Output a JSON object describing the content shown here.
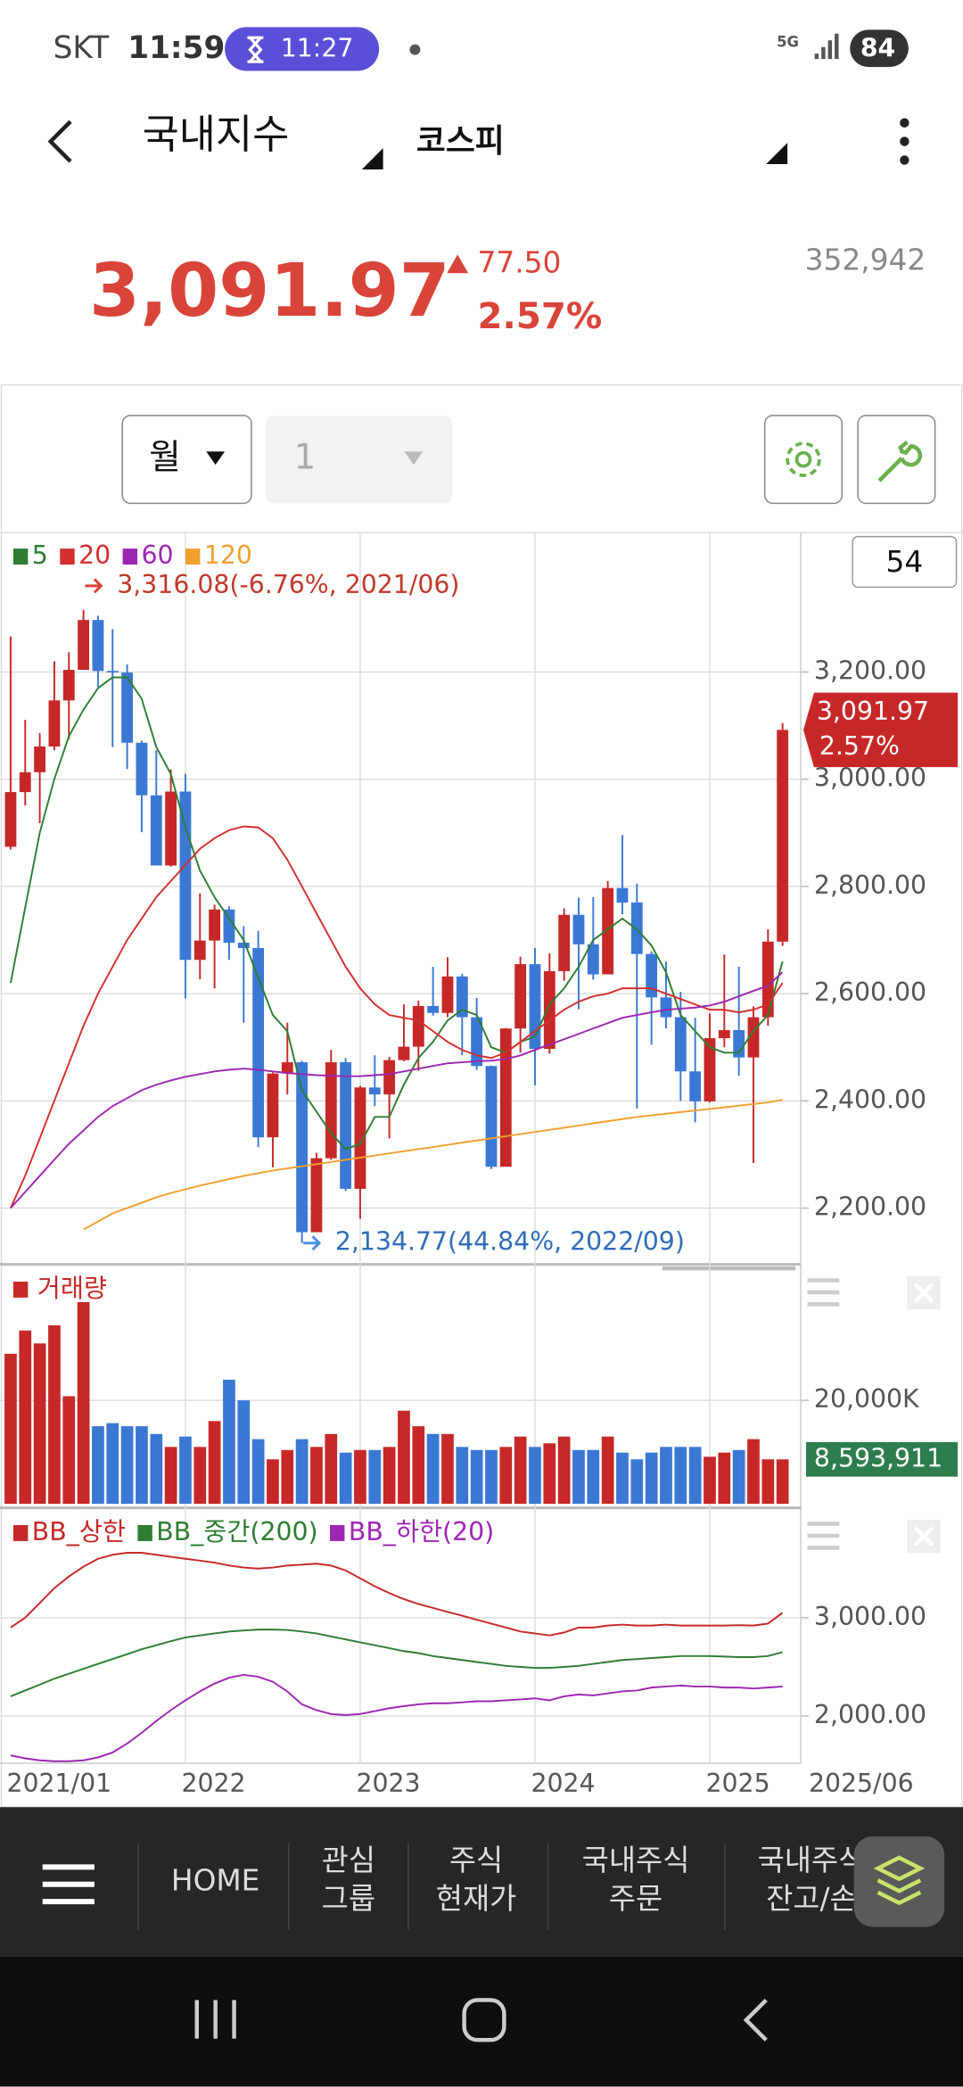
{
  "status_bar": {
    "carrier": "SKT",
    "time": "11:59",
    "timer": "11:27",
    "network": "5G",
    "battery": "84"
  },
  "header": {
    "title": "국내지수",
    "index": "코스피"
  },
  "quote": {
    "price": "3,091.97",
    "change": "77.50",
    "change_rate": "2.57%",
    "volume": "352,942"
  },
  "toolbar": {
    "period": "월",
    "interval": "1",
    "count": "54"
  },
  "chart_data": [
    {
      "type": "candlestick",
      "open": [
        2874,
        2976,
        3013,
        3061,
        3147,
        3204,
        3297,
        3202,
        3199,
        3068,
        2970,
        2839,
        2977,
        2663,
        2699,
        2757,
        2695,
        2685,
        2332,
        2451,
        2472,
        2155,
        2293,
        2472,
        2236,
        2425,
        2412,
        2476,
        2501,
        2577,
        2564,
        2632,
        2556,
        2465,
        2277,
        2535,
        2655,
        2497,
        2642,
        2747,
        2692,
        2636,
        2797,
        2770,
        2674,
        2593,
        2556,
        2455,
        2399,
        2517,
        2532,
        2481,
        2556,
        2697
      ],
      "high": [
        3266,
        3111,
        3086,
        3220,
        3237,
        3316.08,
        3305,
        3280,
        3214,
        3072,
        3054,
        3018,
        3010,
        2787,
        2766,
        2763,
        2726,
        2717,
        2453,
        2546,
        2475,
        2303,
        2495,
        2480,
        2428,
        2485,
        2482,
        2580,
        2587,
        2650,
        2668,
        2637,
        2592,
        2466,
        2536,
        2669,
        2685,
        2675,
        2759,
        2779,
        2780,
        2810,
        2896,
        2805,
        2679,
        2660,
        2603,
        2555,
        2563,
        2673,
        2650,
        2576,
        2720,
        3105
      ],
      "low": [
        2869,
        2951,
        2918,
        3054,
        3075,
        3204,
        3172,
        3060,
        3019,
        2901,
        2839,
        2837,
        2591,
        2627,
        2610,
        2663,
        2546,
        2314,
        2276,
        2412,
        2134.77,
        2155,
        2290,
        2232,
        2180,
        2390,
        2330,
        2474,
        2456,
        2559,
        2556,
        2485,
        2458,
        2273,
        2278,
        2490,
        2429,
        2488,
        2624,
        2571,
        2626,
        2636,
        2748,
        2386,
        2505,
        2535,
        2400,
        2360,
        2397,
        2500,
        2447,
        2284,
        2540,
        2689
      ],
      "close": [
        2976,
        3013,
        3061,
        3147,
        3204,
        3297,
        3202,
        3199,
        3068,
        2970,
        2839,
        2977,
        2663,
        2699,
        2757,
        2695,
        2685,
        2332,
        2451,
        2472,
        2155,
        2293,
        2472,
        2236,
        2425,
        2412,
        2476,
        2501,
        2577,
        2564,
        2632,
        2556,
        2465,
        2277,
        2535,
        2655,
        2497,
        2642,
        2747,
        2692,
        2636,
        2797,
        2770,
        2674,
        2593,
        2556,
        2455,
        2399,
        2517,
        2532,
        2481,
        2556,
        2697,
        3091.97
      ],
      "up_color": "#c62828",
      "down_color": "#3b78d4",
      "series": [
        {
          "name": "5",
          "color": "#2e7d32",
          "values": [
            2620,
            2760,
            2900,
            3000,
            3080,
            3130,
            3170,
            3190,
            3190,
            3150,
            3060,
            3010,
            2910,
            2830,
            2780,
            2740,
            2700,
            2630,
            2560,
            2530,
            2420,
            2380,
            2340,
            2310,
            2320,
            2370,
            2370,
            2430,
            2480,
            2510,
            2550,
            2570,
            2560,
            2500,
            2490,
            2510,
            2520,
            2580,
            2610,
            2650,
            2700,
            2720,
            2740,
            2720,
            2690,
            2640,
            2560,
            2530,
            2500,
            2490,
            2490,
            2530,
            2560,
            2660
          ]
        },
        {
          "name": "20",
          "color": "#d32f2f",
          "values": [
            2200,
            2260,
            2330,
            2400,
            2470,
            2540,
            2600,
            2650,
            2700,
            2740,
            2780,
            2810,
            2840,
            2870,
            2890,
            2905,
            2912,
            2910,
            2890,
            2850,
            2800,
            2750,
            2700,
            2650,
            2610,
            2580,
            2560,
            2555,
            2550,
            2530,
            2510,
            2495,
            2485,
            2480,
            2490,
            2510,
            2530,
            2550,
            2570,
            2585,
            2595,
            2600,
            2610,
            2610,
            2610,
            2600,
            2590,
            2580,
            2570,
            2570,
            2565,
            2570,
            2580,
            2620
          ]
        },
        {
          "name": "60",
          "color": "#9c27b0",
          "values": [
            2200,
            2230,
            2260,
            2290,
            2320,
            2345,
            2370,
            2390,
            2405,
            2420,
            2430,
            2438,
            2445,
            2450,
            2455,
            2458,
            2460,
            2458,
            2455,
            2452,
            2450,
            2448,
            2447,
            2446,
            2446,
            2448,
            2450,
            2455,
            2460,
            2465,
            2470,
            2472,
            2474,
            2475,
            2478,
            2485,
            2495,
            2505,
            2515,
            2525,
            2535,
            2545,
            2555,
            2560,
            2565,
            2570,
            2572,
            2574,
            2578,
            2585,
            2595,
            2605,
            2615,
            2640
          ]
        },
        {
          "name": "120",
          "color": "#f0a030",
          "values": [
            null,
            null,
            null,
            null,
            null,
            2160,
            2175,
            2190,
            2200,
            2210,
            2220,
            2228,
            2235,
            2242,
            2248,
            2254,
            2260,
            2265,
            2270,
            2274,
            2278,
            2282,
            2286,
            2290,
            2294,
            2298,
            2302,
            2306,
            2310,
            2314,
            2318,
            2322,
            2326,
            2330,
            2334,
            2338,
            2342,
            2346,
            2350,
            2354,
            2358,
            2362,
            2366,
            2370,
            2373,
            2376,
            2379,
            2382,
            2385,
            2388,
            2391,
            2394,
            2397,
            2402
          ]
        }
      ],
      "ylim": [
        2100,
        3460
      ],
      "yticks": [
        {
          "value": 2200,
          "label": "2,200.00"
        },
        {
          "value": 2400,
          "label": "2,400.00"
        },
        {
          "value": 2600,
          "label": "2,600.00"
        },
        {
          "value": 2800,
          "label": "2,800.00"
        },
        {
          "value": 3000,
          "label": "3,000.00"
        },
        {
          "value": 3200,
          "label": "3,200.00"
        }
      ],
      "grid": true,
      "annotations": [
        "3,316.08(-6.76%, 2021/06)",
        "2,134.77(44.84%, 2022/09)"
      ],
      "price_tag": [
        "3,091.97",
        "2.57%"
      ]
    },
    {
      "type": "bar",
      "title": "거래량",
      "values": [
        29000000,
        33500000,
        31000000,
        34500000,
        20800000,
        39000000,
        15000000,
        15600000,
        15000000,
        15000000,
        13500000,
        11000000,
        13000000,
        11000000,
        16000000,
        24000000,
        20000000,
        12500000,
        8600000,
        10400000,
        12500000,
        11000000,
        13500000,
        9900000,
        10400000,
        10400000,
        11000000,
        18000000,
        15000000,
        13500000,
        13500000,
        11000000,
        10400000,
        10400000,
        11000000,
        13000000,
        11000000,
        11700000,
        13000000,
        10400000,
        10400000,
        13000000,
        9900000,
        8600000,
        9900000,
        11000000,
        11000000,
        11000000,
        9100000,
        9900000,
        10400000,
        12500000,
        8600000,
        8593911
      ],
      "value_labels": [
        null,
        null,
        null,
        null,
        null,
        null,
        null,
        null,
        null,
        null,
        null,
        null,
        null,
        null,
        null,
        null,
        null,
        null,
        null,
        null,
        null,
        null,
        null,
        null,
        null,
        null,
        null,
        null,
        null,
        null,
        null,
        null,
        null,
        null,
        null,
        null,
        null,
        null,
        null,
        null,
        null,
        null,
        null,
        null,
        null,
        null,
        null,
        null,
        null,
        null,
        null,
        null,
        null,
        "8,593,911"
      ],
      "color": "#c62828",
      "up_color": "#c62828",
      "down_color": "#3b78d4",
      "tag_color": "#2e7d4f",
      "ylim": [
        0,
        45000000
      ],
      "yticks": [
        {
          "value": 20000000,
          "label": "20,000K"
        }
      ],
      "grid": true
    },
    {
      "type": "line",
      "categories": [
        "2021/01",
        null,
        null,
        null,
        null,
        null,
        null,
        null,
        null,
        null,
        null,
        null,
        "2022",
        null,
        null,
        null,
        null,
        null,
        null,
        null,
        null,
        null,
        null,
        null,
        "2023",
        null,
        null,
        null,
        null,
        null,
        null,
        null,
        null,
        null,
        null,
        null,
        "2024",
        null,
        null,
        null,
        null,
        null,
        null,
        null,
        null,
        null,
        null,
        null,
        "2025",
        null,
        null,
        null,
        null,
        "2025/06"
      ],
      "series": [
        {
          "name": "BB_상한",
          "color": "#c62828",
          "values": [
            2900,
            3000,
            3150,
            3300,
            3420,
            3520,
            3600,
            3640,
            3660,
            3660,
            3640,
            3620,
            3600,
            3580,
            3560,
            3530,
            3510,
            3500,
            3510,
            3530,
            3540,
            3550,
            3530,
            3480,
            3400,
            3320,
            3250,
            3190,
            3140,
            3100,
            3060,
            3020,
            2980,
            2940,
            2900,
            2860,
            2840,
            2820,
            2850,
            2900,
            2900,
            2920,
            2930,
            2920,
            2920,
            2930,
            2920,
            2920,
            2920,
            2920,
            2925,
            2920,
            2940,
            3050
          ]
        },
        {
          "name": "BB_중간(200)",
          "color": "#2e7d32",
          "values": [
            2200,
            2260,
            2320,
            2380,
            2430,
            2480,
            2530,
            2580,
            2630,
            2680,
            2720,
            2760,
            2800,
            2820,
            2840,
            2860,
            2870,
            2880,
            2880,
            2875,
            2860,
            2840,
            2810,
            2780,
            2750,
            2720,
            2690,
            2660,
            2640,
            2610,
            2590,
            2570,
            2550,
            2530,
            2510,
            2500,
            2490,
            2490,
            2500,
            2510,
            2530,
            2550,
            2570,
            2580,
            2590,
            2600,
            2610,
            2610,
            2610,
            2605,
            2600,
            2600,
            2610,
            2650
          ]
        },
        {
          "name": "BB_하한(20)",
          "color": "#9c27b0",
          "values": [
            1600,
            1570,
            1550,
            1540,
            1540,
            1550,
            1580,
            1630,
            1720,
            1830,
            1950,
            2060,
            2160,
            2250,
            2330,
            2390,
            2420,
            2400,
            2350,
            2250,
            2120,
            2060,
            2020,
            2010,
            2020,
            2050,
            2080,
            2100,
            2120,
            2130,
            2130,
            2140,
            2150,
            2150,
            2160,
            2170,
            2180,
            2160,
            2200,
            2220,
            2210,
            2230,
            2250,
            2260,
            2290,
            2300,
            2310,
            2300,
            2300,
            2290,
            2290,
            2280,
            2290,
            2300
          ]
        }
      ],
      "ylim": [
        1520,
        4050
      ],
      "yticks": [
        {
          "value": 2000,
          "label": "2,000.00"
        },
        {
          "value": 3000,
          "label": "3,000.00"
        }
      ],
      "grid": true
    }
  ],
  "nav": {
    "items": [
      [
        "HOME"
      ],
      [
        "관심",
        "그룹"
      ],
      [
        "주식",
        "현재가"
      ],
      [
        "국내주식",
        "주문"
      ],
      [
        "국내주식",
        "잔고/손"
      ]
    ]
  }
}
